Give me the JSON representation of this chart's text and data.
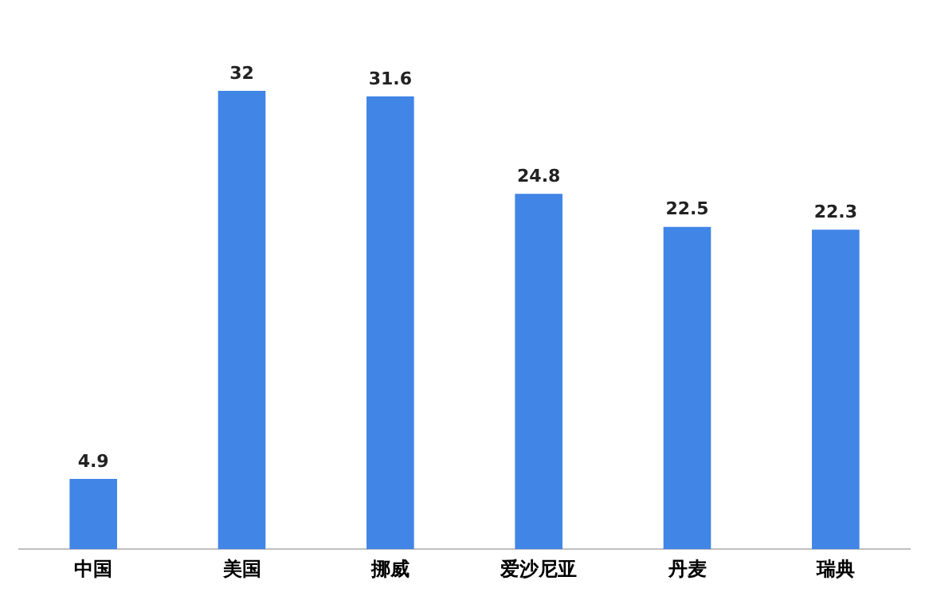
{
  "chart_data": {
    "type": "bar",
    "categories": [
      "中国",
      "美国",
      "挪威",
      "爱沙尼亚",
      "丹麦",
      "瑞典"
    ],
    "values": [
      4.9,
      32,
      31.6,
      24.8,
      22.5,
      22.3
    ],
    "color": "#4185e6",
    "data_labels": true,
    "grid": false,
    "legend": false
  }
}
